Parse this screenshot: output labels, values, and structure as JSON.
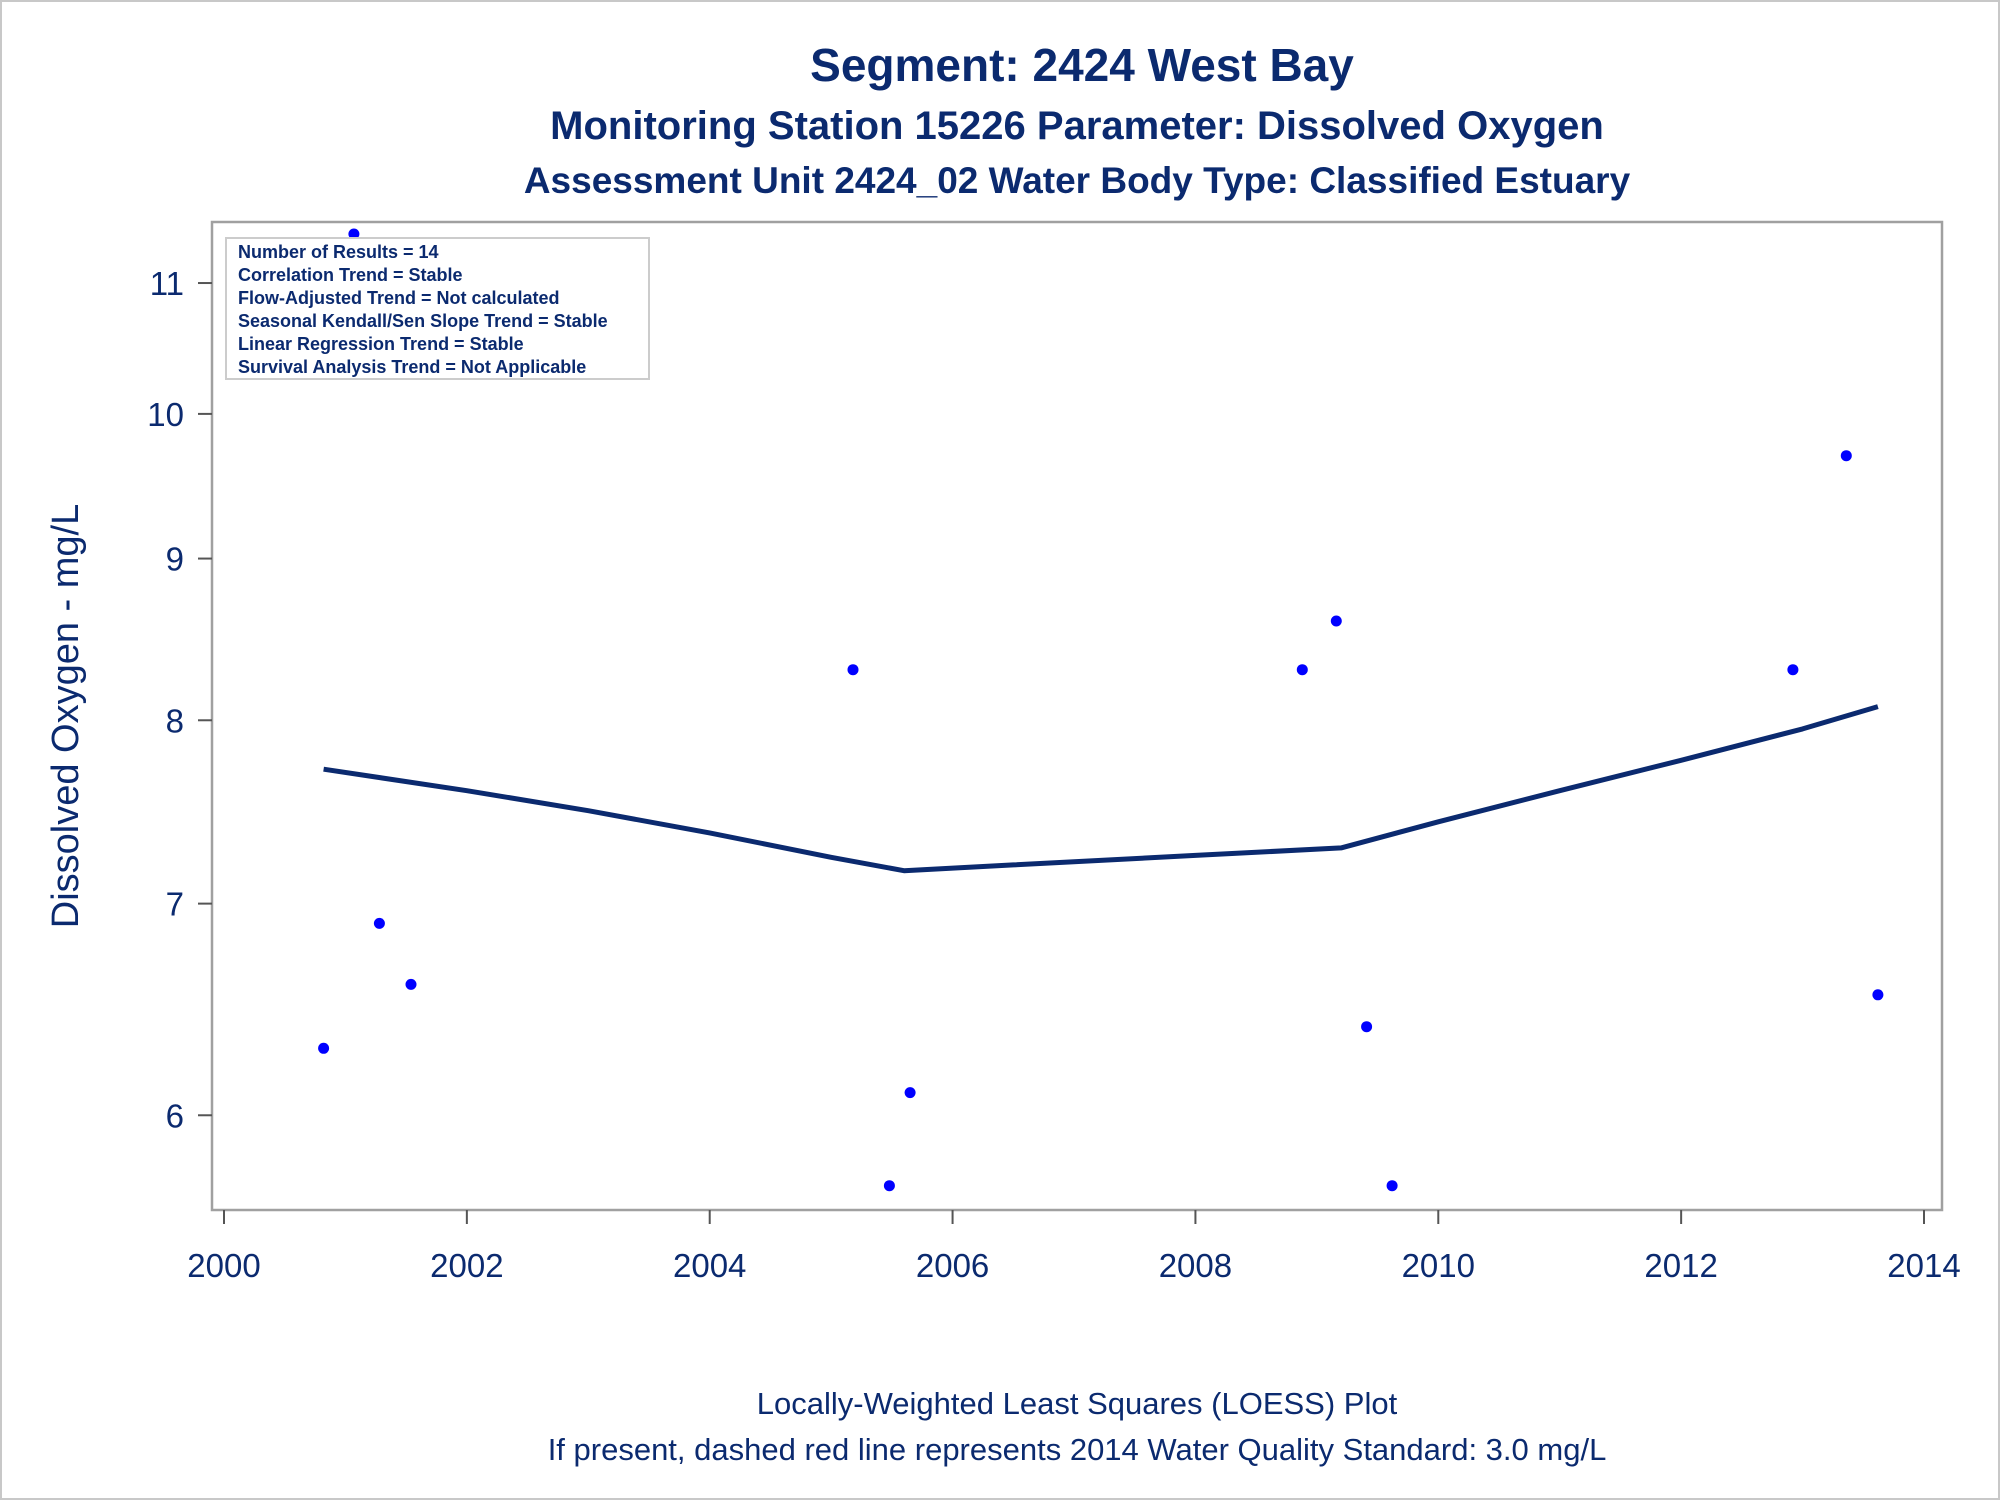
{
  "titles": {
    "line1": "Segment: 2424  West Bay",
    "line2": "Monitoring Station 15226 Parameter: Dissolved Oxygen",
    "line3": "Assessment Unit 2424_02   Water Body Type: Classified Estuary"
  },
  "inset": {
    "lines": [
      "Number of Results = 14",
      "Correlation Trend = Stable",
      "Flow-Adjusted Trend = Not calculated",
      "Seasonal Kendall/Sen Slope Trend = Stable",
      "Linear Regression Trend = Stable",
      "Survival Analysis Trend = Not Applicable"
    ]
  },
  "footer": {
    "line1": "Locally-Weighted Least Squares (LOESS) Plot",
    "line2": "If present, dashed red line represents 2014 Water Quality Standard: 3.0 mg/L"
  },
  "colors": {
    "text": "#0b2a6f",
    "points": "#0000ff",
    "loess": "#0b2a6f",
    "frame": "#a0a0a0"
  },
  "chart_data": {
    "type": "scatter",
    "ylabel": "Dissolved Oxygen - mg/L",
    "xlabel": "",
    "y_scale": "log",
    "xlim": [
      2000,
      2014
    ],
    "ylim": [
      5.6,
      11.5
    ],
    "x_ticks": [
      2000,
      2002,
      2004,
      2006,
      2008,
      2010,
      2012,
      2014
    ],
    "y_ticks": [
      6,
      7,
      8,
      9,
      10,
      11
    ],
    "points": [
      {
        "x": 2000.82,
        "y": 6.3
      },
      {
        "x": 2001.07,
        "y": 11.4
      },
      {
        "x": 2001.28,
        "y": 6.9
      },
      {
        "x": 2001.54,
        "y": 6.6
      },
      {
        "x": 2005.18,
        "y": 8.3
      },
      {
        "x": 2005.48,
        "y": 5.7
      },
      {
        "x": 2005.65,
        "y": 6.1
      },
      {
        "x": 2008.88,
        "y": 8.3
      },
      {
        "x": 2009.16,
        "y": 8.6
      },
      {
        "x": 2009.41,
        "y": 6.4
      },
      {
        "x": 2009.62,
        "y": 5.7
      },
      {
        "x": 2012.92,
        "y": 8.3
      },
      {
        "x": 2013.36,
        "y": 9.7
      },
      {
        "x": 2013.62,
        "y": 6.55
      }
    ],
    "loess": [
      {
        "x": 2000.82,
        "y": 7.72
      },
      {
        "x": 2002.0,
        "y": 7.6
      },
      {
        "x": 2003.0,
        "y": 7.49
      },
      {
        "x": 2004.0,
        "y": 7.37
      },
      {
        "x": 2005.0,
        "y": 7.24
      },
      {
        "x": 2005.6,
        "y": 7.17
      },
      {
        "x": 2006.5,
        "y": 7.2
      },
      {
        "x": 2008.0,
        "y": 7.25
      },
      {
        "x": 2009.2,
        "y": 7.29
      },
      {
        "x": 2010.0,
        "y": 7.43
      },
      {
        "x": 2011.0,
        "y": 7.6
      },
      {
        "x": 2012.0,
        "y": 7.77
      },
      {
        "x": 2013.0,
        "y": 7.95
      },
      {
        "x": 2013.62,
        "y": 8.08
      }
    ]
  }
}
